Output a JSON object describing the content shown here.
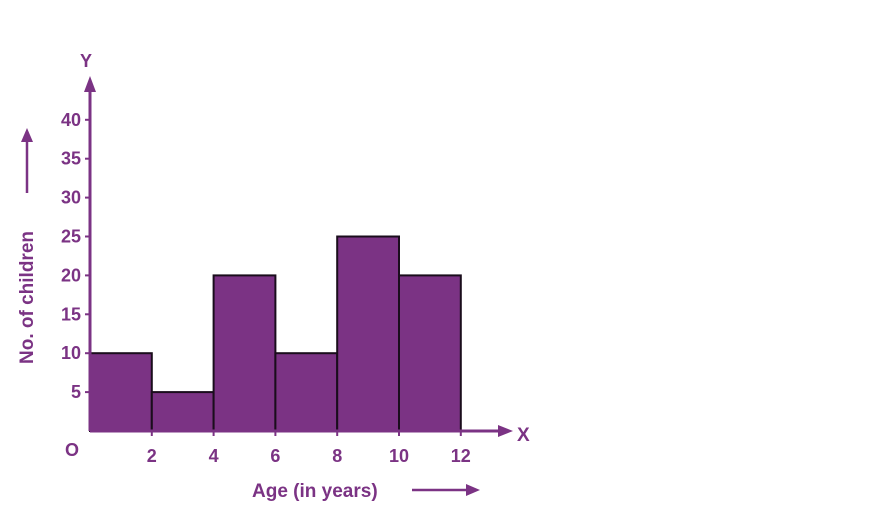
{
  "colors": {
    "axis": "#7b3384",
    "bar_fill": "#7b3384",
    "bar_stroke": "#1a0d1c",
    "text": "#7b3384"
  },
  "chart_data": {
    "type": "bar",
    "subtype": "histogram",
    "title": "",
    "xlabel": "Age (in years)",
    "ylabel": "No. of children",
    "x_axis_letter": "X",
    "y_axis_letter": "Y",
    "origin_label": "O",
    "bins": [
      {
        "from": 0,
        "to": 2,
        "value": 10
      },
      {
        "from": 2,
        "to": 4,
        "value": 5
      },
      {
        "from": 4,
        "to": 6,
        "value": 20
      },
      {
        "from": 6,
        "to": 8,
        "value": 10
      },
      {
        "from": 8,
        "to": 10,
        "value": 25
      },
      {
        "from": 10,
        "to": 12,
        "value": 20
      }
    ],
    "x_ticks": [
      "2",
      "4",
      "6",
      "8",
      "10",
      "12"
    ],
    "y_ticks": [
      "5",
      "10",
      "15",
      "20",
      "25",
      "30",
      "35",
      "40"
    ],
    "xlim": [
      0,
      12
    ],
    "ylim": [
      0,
      40
    ],
    "grid": false
  }
}
